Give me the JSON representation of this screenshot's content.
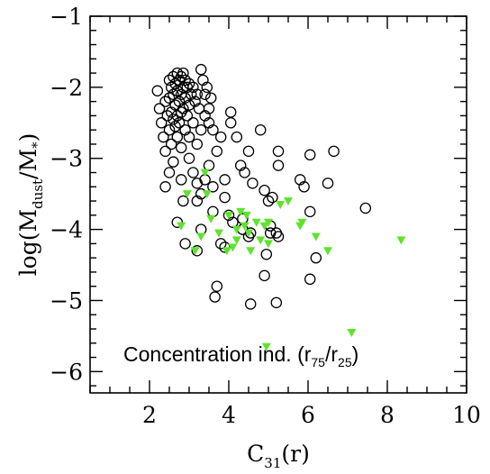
{
  "chart_data": {
    "type": "scatter",
    "xlim": [
      0.5,
      10
    ],
    "ylim": [
      -6.3,
      -1
    ],
    "x_ticks": [
      2,
      4,
      6,
      8,
      10
    ],
    "y_ticks": [
      -1,
      -2,
      -3,
      -4,
      -5,
      -6
    ],
    "x_tick_labels": [
      "2",
      "4",
      "6",
      "8",
      "10"
    ],
    "y_tick_labels": [
      "−1",
      "−2",
      "−3",
      "−4",
      "−5",
      "−6"
    ],
    "xlabel": {
      "main": "C",
      "sub": "31",
      "tail": "(r)"
    },
    "ylabel": {
      "pre": "log(M",
      "sub1": "dust",
      "mid": "/M",
      "sub2": "*",
      "post": ")"
    },
    "annotation": {
      "pre": "Concentration ind. (r",
      "sub1": "75",
      "mid": "/r",
      "sub2": "25",
      "post": ")"
    },
    "grid": false,
    "series": [
      {
        "marker": "open-circle",
        "color": "#000000",
        "points": [
          [
            2.2,
            -2.05
          ],
          [
            2.25,
            -2.3
          ],
          [
            2.3,
            -2.5
          ],
          [
            2.35,
            -2.7
          ],
          [
            2.4,
            -2.2
          ],
          [
            2.4,
            -2.9
          ],
          [
            2.45,
            -2.4
          ],
          [
            2.5,
            -1.9
          ],
          [
            2.5,
            -2.15
          ],
          [
            2.5,
            -2.6
          ],
          [
            2.55,
            -2.0
          ],
          [
            2.55,
            -2.35
          ],
          [
            2.55,
            -2.8
          ],
          [
            2.6,
            -1.85
          ],
          [
            2.6,
            -2.1
          ],
          [
            2.6,
            -2.45
          ],
          [
            2.6,
            -3.05
          ],
          [
            2.65,
            -1.95
          ],
          [
            2.65,
            -2.25
          ],
          [
            2.65,
            -2.55
          ],
          [
            2.7,
            -1.8
          ],
          [
            2.7,
            -2.05
          ],
          [
            2.7,
            -2.4
          ],
          [
            2.7,
            -2.7
          ],
          [
            2.75,
            -1.9
          ],
          [
            2.75,
            -2.2
          ],
          [
            2.75,
            -2.5
          ],
          [
            2.8,
            -1.85
          ],
          [
            2.8,
            -2.1
          ],
          [
            2.8,
            -2.35
          ],
          [
            2.8,
            -2.85
          ],
          [
            2.85,
            -1.8
          ],
          [
            2.85,
            -2.0
          ],
          [
            2.85,
            -2.3
          ],
          [
            2.9,
            -1.9
          ],
          [
            2.9,
            -2.15
          ],
          [
            2.9,
            -2.6
          ],
          [
            2.95,
            -2.0
          ],
          [
            2.95,
            -2.4
          ],
          [
            3.0,
            -1.95
          ],
          [
            3.0,
            -2.25
          ],
          [
            3.0,
            -2.7
          ],
          [
            3.05,
            -2.1
          ],
          [
            3.1,
            -2.0
          ],
          [
            3.1,
            -2.5
          ],
          [
            3.15,
            -2.2
          ],
          [
            3.2,
            -2.1
          ],
          [
            3.2,
            -2.8
          ],
          [
            3.25,
            -2.3
          ],
          [
            3.3,
            -1.75
          ],
          [
            3.3,
            -2.6
          ],
          [
            3.35,
            -1.9
          ],
          [
            3.4,
            -2.1
          ],
          [
            3.4,
            -2.4
          ],
          [
            3.45,
            -2.0
          ],
          [
            3.5,
            -2.3
          ],
          [
            3.5,
            -2.5
          ],
          [
            3.55,
            -2.15
          ],
          [
            3.6,
            -2.6
          ],
          [
            3.7,
            -2.9
          ],
          [
            3.8,
            -2.7
          ],
          [
            3.9,
            -3.3
          ],
          [
            4.05,
            -2.35
          ],
          [
            4.05,
            -2.5
          ],
          [
            4.2,
            -2.7
          ],
          [
            4.3,
            -3.1
          ],
          [
            4.4,
            -3.2
          ],
          [
            4.5,
            -2.9
          ],
          [
            4.6,
            -3.35
          ],
          [
            4.8,
            -2.6
          ],
          [
            4.9,
            -3.45
          ],
          [
            5.0,
            -3.6
          ],
          [
            5.1,
            -3.55
          ],
          [
            5.25,
            -3.1
          ],
          [
            5.25,
            -2.9
          ],
          [
            5.8,
            -3.3
          ],
          [
            5.9,
            -3.4
          ],
          [
            6.05,
            -2.95
          ],
          [
            6.5,
            -3.35
          ],
          [
            6.65,
            -2.9
          ],
          [
            6.05,
            -3.75
          ],
          [
            7.45,
            -3.7
          ],
          [
            3.0,
            -3.0
          ],
          [
            3.1,
            -3.2
          ],
          [
            3.2,
            -3.35
          ],
          [
            3.3,
            -3.5
          ],
          [
            3.4,
            -3.3
          ],
          [
            3.5,
            -3.1
          ],
          [
            3.6,
            -3.4
          ],
          [
            3.2,
            -3.6
          ],
          [
            2.5,
            -3.2
          ],
          [
            2.4,
            -3.4
          ],
          [
            2.8,
            -3.3
          ],
          [
            3.6,
            -3.75
          ],
          [
            3.9,
            -3.55
          ],
          [
            4.0,
            -3.8
          ],
          [
            4.1,
            -3.9
          ],
          [
            3.9,
            -4.25
          ],
          [
            3.8,
            -4.2
          ],
          [
            3.2,
            -4.3
          ],
          [
            4.35,
            -3.85
          ],
          [
            4.35,
            -4.0
          ],
          [
            4.55,
            -4.05
          ],
          [
            5.05,
            -3.95
          ],
          [
            5.2,
            -4.05
          ],
          [
            5.25,
            -4.1
          ],
          [
            4.95,
            -4.35
          ],
          [
            5.05,
            -4.05
          ],
          [
            6.2,
            -4.4
          ],
          [
            6.05,
            -4.7
          ],
          [
            4.9,
            -4.65
          ],
          [
            3.7,
            -4.8
          ],
          [
            3.65,
            -4.95
          ],
          [
            4.55,
            -5.05
          ],
          [
            5.2,
            -5.03
          ],
          [
            4.5,
            -4.1
          ],
          [
            2.85,
            -3.6
          ],
          [
            2.7,
            -3.9
          ],
          [
            2.9,
            -4.2
          ],
          [
            3.3,
            -4.0
          ]
        ]
      },
      {
        "marker": "filled-triangle-down",
        "color": "#5ee32c",
        "points": [
          [
            2.8,
            -3.95
          ],
          [
            2.95,
            -3.5
          ],
          [
            3.15,
            -4.3
          ],
          [
            3.3,
            -4.1
          ],
          [
            3.4,
            -3.2
          ],
          [
            3.45,
            -3.5
          ],
          [
            3.55,
            -3.85
          ],
          [
            3.75,
            -4.05
          ],
          [
            3.95,
            -4.3
          ],
          [
            4.0,
            -3.8
          ],
          [
            4.2,
            -4.0
          ],
          [
            4.2,
            -4.15
          ],
          [
            4.3,
            -3.75
          ],
          [
            4.4,
            -3.95
          ],
          [
            4.45,
            -3.8
          ],
          [
            4.5,
            -4.05
          ],
          [
            4.55,
            -4.3
          ],
          [
            4.7,
            -3.9
          ],
          [
            4.8,
            -4.15
          ],
          [
            4.9,
            -3.95
          ],
          [
            5.0,
            -3.9
          ],
          [
            5.0,
            -4.2
          ],
          [
            5.3,
            -3.65
          ],
          [
            5.5,
            -3.6
          ],
          [
            5.8,
            -3.95
          ],
          [
            5.85,
            -3.9
          ],
          [
            6.2,
            -4.1
          ],
          [
            6.5,
            -4.3
          ],
          [
            8.35,
            -4.15
          ],
          [
            7.1,
            -5.45
          ],
          [
            4.95,
            -5.65
          ],
          [
            4.1,
            -4.25
          ]
        ]
      }
    ]
  }
}
